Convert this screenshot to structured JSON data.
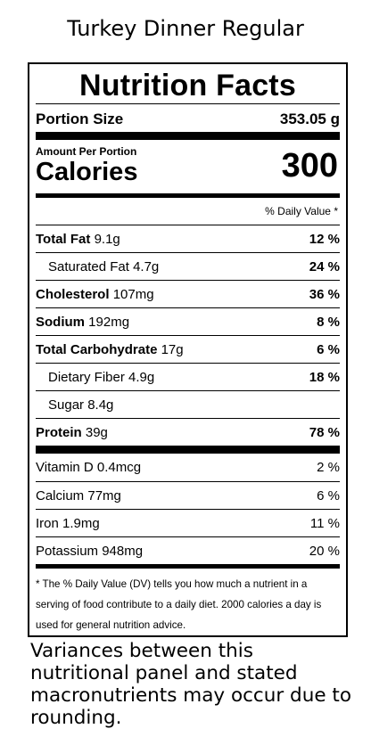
{
  "page_title": "Turkey Dinner Regular",
  "label": {
    "title": "Nutrition Facts",
    "portion_size_label": "Portion Size",
    "portion_size_value": "353.05 g",
    "amount_per_portion": "Amount Per Portion",
    "calories_label": "Calories",
    "calories_value": "300",
    "dv_header": "% Daily Value *",
    "nutrients": [
      {
        "name": "Total Fat",
        "amount": "9.1g",
        "pct": "12 %"
      },
      {
        "name": "Saturated Fat",
        "amount": "4.7g",
        "pct": "24 %"
      },
      {
        "name": "Cholesterol",
        "amount": "107mg",
        "pct": "36 %"
      },
      {
        "name": "Sodium",
        "amount": "192mg",
        "pct": "8 %"
      },
      {
        "name": "Total Carbohydrate",
        "amount": "17g",
        "pct": "6 %"
      },
      {
        "name": "Dietary Fiber",
        "amount": "4.9g",
        "pct": "18 %"
      },
      {
        "name": "Sugar",
        "amount": "8.4g",
        "pct": ""
      },
      {
        "name": "Protein",
        "amount": "39g",
        "pct": "78 %"
      }
    ],
    "vitamins": [
      {
        "name": "Vitamin D",
        "amount": "0.4mcg",
        "pct": "2 %"
      },
      {
        "name": "Calcium",
        "amount": "77mg",
        "pct": "6 %"
      },
      {
        "name": "Iron",
        "amount": "1.9mg",
        "pct": "11 %"
      },
      {
        "name": "Potassium",
        "amount": "948mg",
        "pct": "20 %"
      }
    ],
    "footnote": "* The % Daily Value (DV) tells you how much a nutrient in a serving of food contribute to a daily diet. 2000 calories a day is used for general nutrition advice."
  },
  "variance_note": "Variances between this nutritional panel and stated macronutrients may occur due to rounding."
}
